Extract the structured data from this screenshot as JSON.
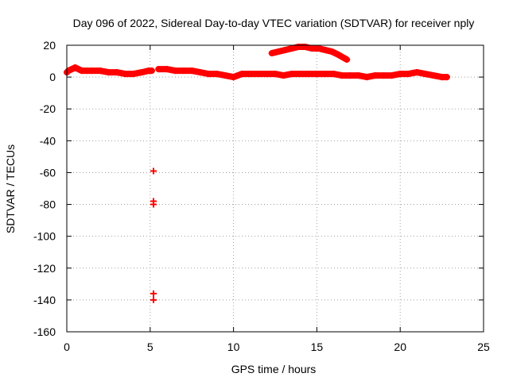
{
  "chart_data": {
    "type": "scatter",
    "title": "Day 096 of 2022, Sidereal Day-to-day VTEC variation (SDTVAR) for receiver nply",
    "xlabel": "GPS time / hours",
    "ylabel": "SDTVAR / TECUs",
    "xlim": [
      0,
      25
    ],
    "ylim": [
      -160,
      20
    ],
    "xticks": [
      0,
      5,
      10,
      15,
      20,
      25
    ],
    "yticks": [
      -160,
      -140,
      -120,
      -100,
      -80,
      -60,
      -40,
      -20,
      0,
      20
    ],
    "grid": true,
    "marker": "plus",
    "series": [
      {
        "name": "SDTVAR",
        "color": "#ff0000",
        "bands": [
          {
            "x": [
              0.0,
              0.1,
              0.3,
              0.5,
              0.7,
              0.9,
              1.2,
              1.5,
              2.0,
              2.5,
              3.0,
              3.5,
              4.0,
              4.5,
              4.9,
              5.1
            ],
            "y": [
              3,
              4,
              5,
              6,
              5,
              4,
              4,
              4,
              4,
              3,
              3,
              2,
              2,
              3,
              4,
              4
            ]
          },
          {
            "x": [
              5.5,
              6.0,
              6.5,
              7.0,
              7.5,
              8.0,
              8.5,
              9.0,
              9.5,
              10.0,
              10.5,
              11.0,
              11.5,
              12.0,
              12.5,
              13.0,
              13.5,
              14.0,
              14.5,
              15.0,
              15.5,
              16.0,
              16.5,
              17.0,
              17.5,
              18.0,
              18.5,
              19.0,
              19.5,
              20.0,
              20.5,
              21.0,
              21.5,
              22.0,
              22.5,
              22.8
            ],
            "y": [
              5,
              5,
              4,
              4,
              4,
              3,
              2,
              2,
              1,
              0,
              2,
              2,
              2,
              2,
              2,
              1,
              2,
              2,
              2,
              2,
              2,
              2,
              1,
              1,
              1,
              0,
              1,
              1,
              1,
              2,
              2,
              3,
              2,
              1,
              0,
              0
            ]
          },
          {
            "x": [
              12.3,
              12.7,
              13.1,
              13.5,
              13.9,
              14.3,
              14.7,
              15.1,
              15.5,
              15.9,
              16.3,
              16.8
            ],
            "y": [
              15,
              16,
              17,
              18,
              19,
              19,
              18,
              18,
              17,
              16,
              14,
              11
            ]
          }
        ],
        "points": [
          {
            "x": 5.2,
            "y": -59
          },
          {
            "x": 5.2,
            "y": -78
          },
          {
            "x": 5.2,
            "y": -80
          },
          {
            "x": 5.2,
            "y": -136
          },
          {
            "x": 5.2,
            "y": -140
          }
        ]
      }
    ]
  }
}
